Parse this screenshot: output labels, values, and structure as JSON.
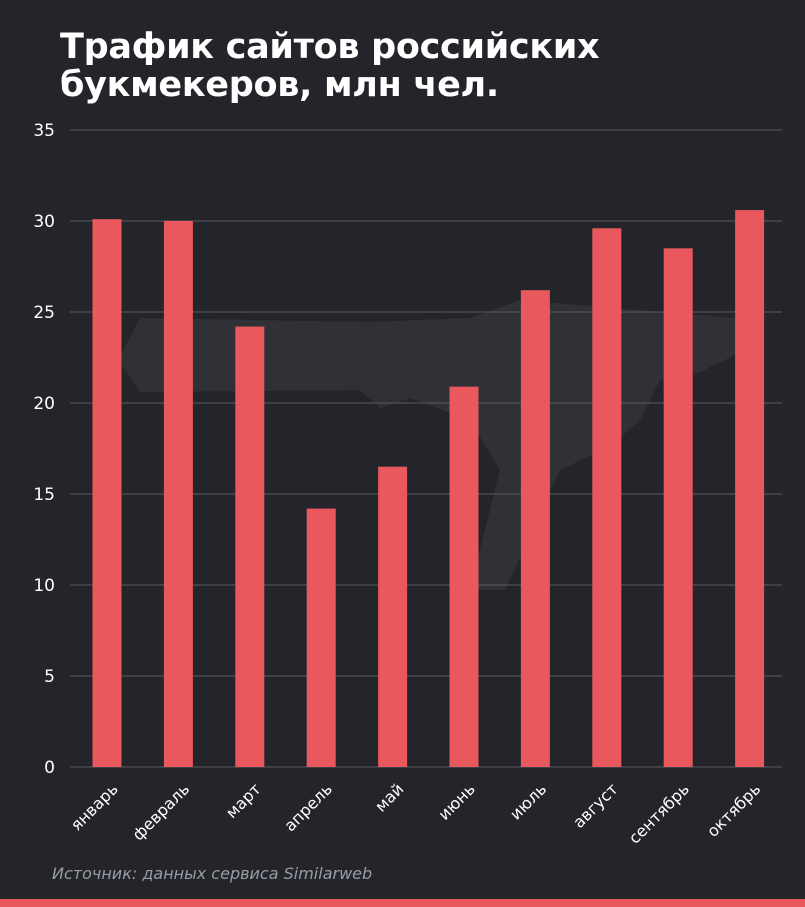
{
  "header": {
    "title_line1": "Трафик сайтов российских",
    "title_line2": "букмекеров, млн чел."
  },
  "footer": {
    "source": "Источник: данных сервиса Similarweb"
  },
  "colors": {
    "background": "#24252b",
    "bar": "#e8585c",
    "grid": "#5a5b61",
    "axis_text": "#ffffff",
    "source_text": "#9a9ca4",
    "watermark": "#3a3b42"
  },
  "chart_data": {
    "type": "bar",
    "title": "Трафик сайтов российских букмекеров, млн чел.",
    "categories": [
      "январь",
      "февраль",
      "март",
      "апрель",
      "май",
      "июнь",
      "июль",
      "август",
      "сентябрь",
      "октябрь"
    ],
    "values": [
      30.1,
      30.0,
      24.2,
      14.2,
      16.5,
      20.9,
      26.2,
      29.6,
      28.5,
      30.6
    ],
    "ylim": [
      0,
      35
    ],
    "yticks": [
      0,
      5,
      10,
      15,
      20,
      25,
      30,
      35
    ],
    "grid": true,
    "xlabel": "",
    "ylabel": ""
  }
}
